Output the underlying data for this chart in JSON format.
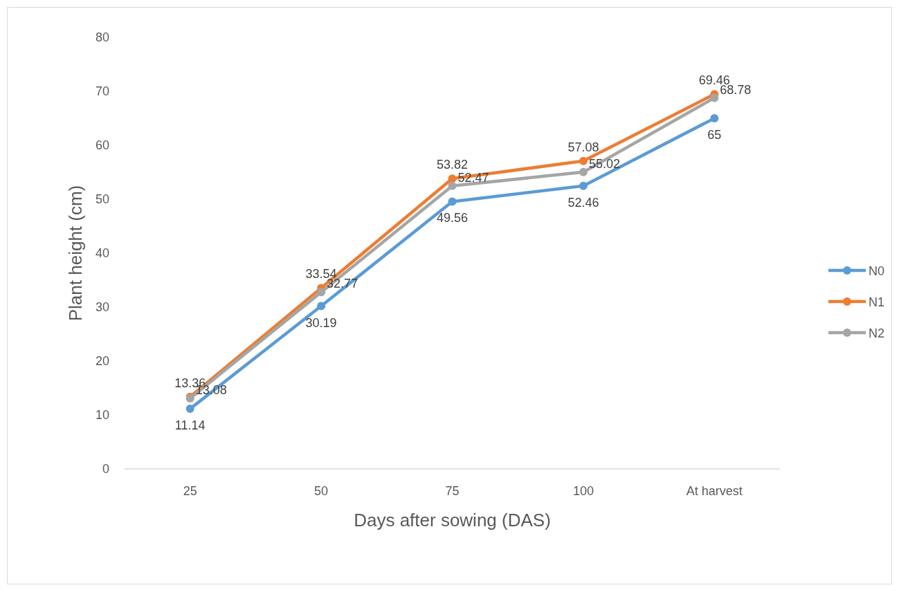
{
  "chart_data": {
    "type": "line",
    "xlabel": "Days after sowing (DAS)",
    "ylabel": "Plant height (cm)",
    "categories": [
      "25",
      "50",
      "75",
      "100",
      "At harvest"
    ],
    "series": [
      {
        "name": "N0",
        "color": "#5b9bd5",
        "values": [
          11.14,
          30.19,
          49.56,
          52.46,
          65
        ]
      },
      {
        "name": "N1",
        "color": "#ed7d31",
        "values": [
          13.36,
          33.54,
          53.82,
          57.08,
          69.46
        ]
      },
      {
        "name": "N2",
        "color": "#a5a5a5",
        "values": [
          13.08,
          32.77,
          52.47,
          55.02,
          68.78
        ]
      }
    ],
    "ylim": [
      0,
      80
    ],
    "yticks": [
      0,
      10,
      20,
      30,
      40,
      50,
      60,
      70,
      80
    ],
    "grid": false,
    "legend": "right",
    "marker": "circle",
    "line_style": "solid",
    "data_labels": true
  }
}
